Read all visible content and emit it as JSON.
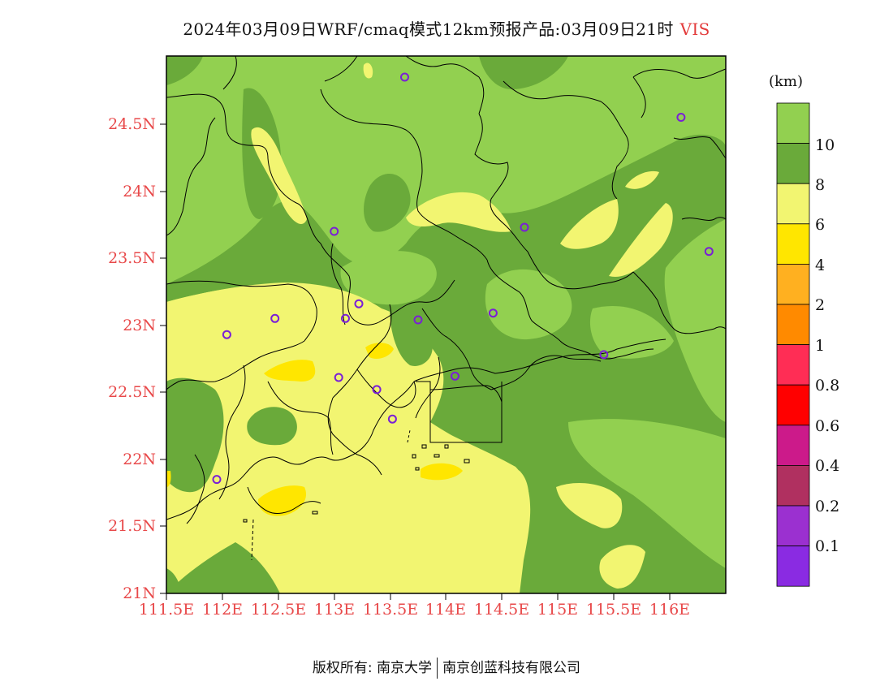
{
  "header": {
    "title": "2024年03月09日WRF/cmaq模式12km预报产品:03月09日21时",
    "variable": "VIS"
  },
  "map": {
    "lat_labels": [
      "24.5N",
      "24N",
      "23.5N",
      "23N",
      "22.5N",
      "22N",
      "21.5N",
      "21N"
    ],
    "lon_labels": [
      "111.5E",
      "112E",
      "112.5E",
      "113E",
      "113.5E",
      "114E",
      "114.5E",
      "115E",
      "115.5E",
      "116E"
    ],
    "extent": {
      "lon": [
        111.5,
        116.2
      ],
      "lat": [
        21.0,
        24.95
      ]
    },
    "colors": {
      "gt10": "#92d050",
      "8to10": "#6aaa3a",
      "6to8": "#f2f571",
      "4to6": "#ffe600",
      "border": "#000000",
      "station": "#7a1fd6"
    }
  },
  "colorbar": {
    "unit": "(km)",
    "labels": [
      "10",
      "8",
      "6",
      "4",
      "2",
      "1",
      "0.8",
      "0.6",
      "0.4",
      "0.2",
      "0.1"
    ],
    "colors": [
      "#92d050",
      "#6aaa3a",
      "#f2f571",
      "#ffe600",
      "#ffb020",
      "#ff8a00",
      "#ff2d55",
      "#ff0000",
      "#cc1a8a",
      "#b03060",
      "#9b30d0",
      "#8a2be2"
    ]
  },
  "chart_data": {
    "type": "heatmap",
    "variable": "VIS",
    "unit": "km",
    "levels": [
      0.1,
      0.2,
      0.4,
      0.6,
      0.8,
      1,
      2,
      4,
      6,
      8,
      10
    ],
    "x_range": [
      111.5,
      116.2
    ],
    "y_range": [
      21.0,
      24.95
    ],
    "stations": [
      {
        "lon": 113.63,
        "lat": 24.85
      },
      {
        "lon": 116.1,
        "lat": 24.55
      },
      {
        "lon": 113.0,
        "lat": 23.7
      },
      {
        "lon": 114.7,
        "lat": 23.73
      },
      {
        "lon": 116.35,
        "lat": 23.55
      },
      {
        "lon": 112.47,
        "lat": 23.05
      },
      {
        "lon": 112.04,
        "lat": 22.93
      },
      {
        "lon": 113.1,
        "lat": 23.05
      },
      {
        "lon": 113.22,
        "lat": 23.16
      },
      {
        "lon": 113.75,
        "lat": 23.04
      },
      {
        "lon": 114.42,
        "lat": 23.09
      },
      {
        "lon": 115.41,
        "lat": 22.78
      },
      {
        "lon": 113.04,
        "lat": 22.61
      },
      {
        "lon": 113.38,
        "lat": 22.52
      },
      {
        "lon": 114.08,
        "lat": 22.62
      },
      {
        "lon": 113.52,
        "lat": 22.3
      },
      {
        "lon": 111.95,
        "lat": 21.85
      }
    ]
  },
  "footer": {
    "copyright": "版权所有: 南京大学",
    "company": "南京创蓝科技有限公司"
  }
}
